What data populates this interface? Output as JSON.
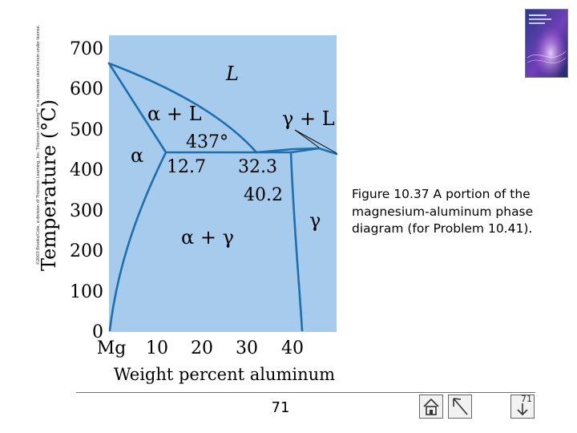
{
  "copyright": "©2003 Brooks/Cole, a division of Thomson Learning, Inc. Thomson Learning™ is a trademark used herein under license.",
  "diagram": {
    "y_axis_label": "Temperature (°C)",
    "x_axis_label": "Weight percent aluminum",
    "y_ticks": [
      "700",
      "600",
      "500",
      "400",
      "300",
      "200",
      "100",
      "0"
    ],
    "x_ticks": [
      "Mg",
      "10",
      "20",
      "30",
      "40"
    ],
    "regions": {
      "liquid": "L",
      "alpha_plus_liquid": "α + L",
      "gamma_plus_liquid": "γ + L",
      "alpha": "α",
      "gamma": "γ",
      "alpha_plus_gamma": "α + γ"
    },
    "eutectic_temperature": "437°",
    "eutectic_compositions": [
      "12.7",
      "32.3",
      "40.2"
    ],
    "colors": {
      "field": "#a7cbec",
      "boundary": "#1f6fae",
      "text": "#000000"
    }
  },
  "caption": "Figure 10.37 A portion of the magnesium-aluminum phase diagram (for Problem 10.41).",
  "footer": {
    "page_number": "71",
    "nav_corner": "71",
    "nav_icons": [
      "home-icon",
      "previous-icon",
      "next-icon"
    ]
  },
  "book_cover": {
    "colors": {
      "bg": "#2a3a8c",
      "accent": "#b24fd0",
      "glow": "#e8d8ff"
    }
  }
}
